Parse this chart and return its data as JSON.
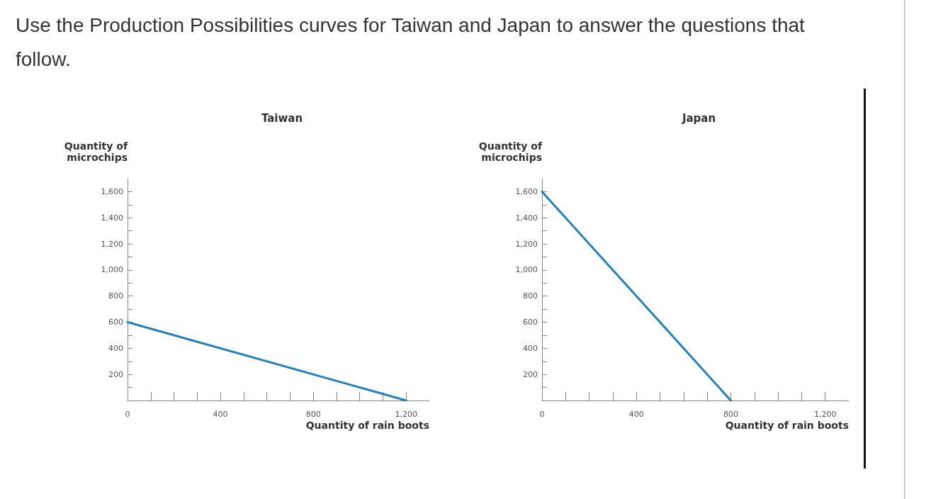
{
  "chart_data": [
    {
      "type": "line",
      "title": "Taiwan",
      "xlabel": "Quantity of rain boots",
      "ylabel": "Quantity of microchips",
      "annotations": [
        "Use the Production Possibilities curves for Taiwan and Japan to answer the questions that follow."
      ],
      "x": [
        0,
        1200
      ],
      "series": [
        {
          "color": "#2a80b2",
          "values": [
            600,
            0
          ]
        }
      ],
      "xlim": [
        0,
        1300
      ],
      "ylim": [
        0,
        1700
      ],
      "xticks": [
        0,
        {
          "value": 100,
          "label": null
        },
        {
          "value": 200,
          "label": null
        },
        {
          "value": 300,
          "label": null
        },
        400,
        {
          "value": 500,
          "label": null
        },
        {
          "value": 600,
          "label": null
        },
        {
          "value": 700,
          "label": null
        },
        800,
        {
          "value": 900,
          "label": null
        },
        {
          "value": 1000,
          "label": null
        },
        {
          "value": 1100,
          "label": null
        },
        {
          "value": 1200,
          "label": "1,200"
        }
      ],
      "yticks": [
        {
          "value": 0,
          "label": null
        },
        {
          "value": 100,
          "label": null
        },
        200,
        {
          "value": 300,
          "label": null
        },
        400,
        {
          "value": 500,
          "label": null
        },
        600,
        {
          "value": 700,
          "label": null
        },
        800,
        {
          "value": 900,
          "label": null
        },
        {
          "value": 1000,
          "label": "1,000"
        },
        {
          "value": 1100,
          "label": null
        },
        {
          "value": 1200,
          "label": "1,200"
        },
        {
          "value": 1300,
          "label": null
        },
        {
          "value": 1400,
          "label": "1,400"
        },
        {
          "value": 1500,
          "label": null
        },
        {
          "value": 1600,
          "label": "1,600"
        }
      ],
      "grid": false,
      "marker": "none"
    },
    {
      "type": "line",
      "title": "Japan",
      "xlabel": "Quantity of rain boots",
      "ylabel": "Quantity of microchips",
      "x": [
        0,
        800
      ],
      "series": [
        {
          "color": "#2a80b2",
          "values": [
            1600,
            0
          ]
        }
      ],
      "xlim": [
        0,
        1300
      ],
      "ylim": [
        0,
        1700
      ],
      "xticks": [
        0,
        {
          "value": 100,
          "label": null
        },
        {
          "value": 200,
          "label": null
        },
        {
          "value": 300,
          "label": null
        },
        400,
        {
          "value": 500,
          "label": null
        },
        {
          "value": 600,
          "label": null
        },
        {
          "value": 700,
          "label": null
        },
        800,
        {
          "value": 900,
          "label": null
        },
        {
          "value": 1000,
          "label": null
        },
        {
          "value": 1100,
          "label": null
        },
        {
          "value": 1200,
          "label": "1,200"
        }
      ],
      "yticks": [
        {
          "value": 0,
          "label": null
        },
        {
          "value": 100,
          "label": null
        },
        200,
        {
          "value": 300,
          "label": null
        },
        400,
        {
          "value": 500,
          "label": null
        },
        600,
        {
          "value": 700,
          "label": null
        },
        800,
        {
          "value": 900,
          "label": null
        },
        {
          "value": 1000,
          "label": "1,000"
        },
        {
          "value": 1100,
          "label": null
        },
        {
          "value": 1200,
          "label": "1,200"
        },
        {
          "value": 1300,
          "label": null
        },
        {
          "value": 1400,
          "label": "1,400"
        },
        {
          "value": 1500,
          "label": null
        },
        {
          "value": 1600,
          "label": "1,600"
        }
      ],
      "grid": false,
      "marker": "none"
    }
  ]
}
